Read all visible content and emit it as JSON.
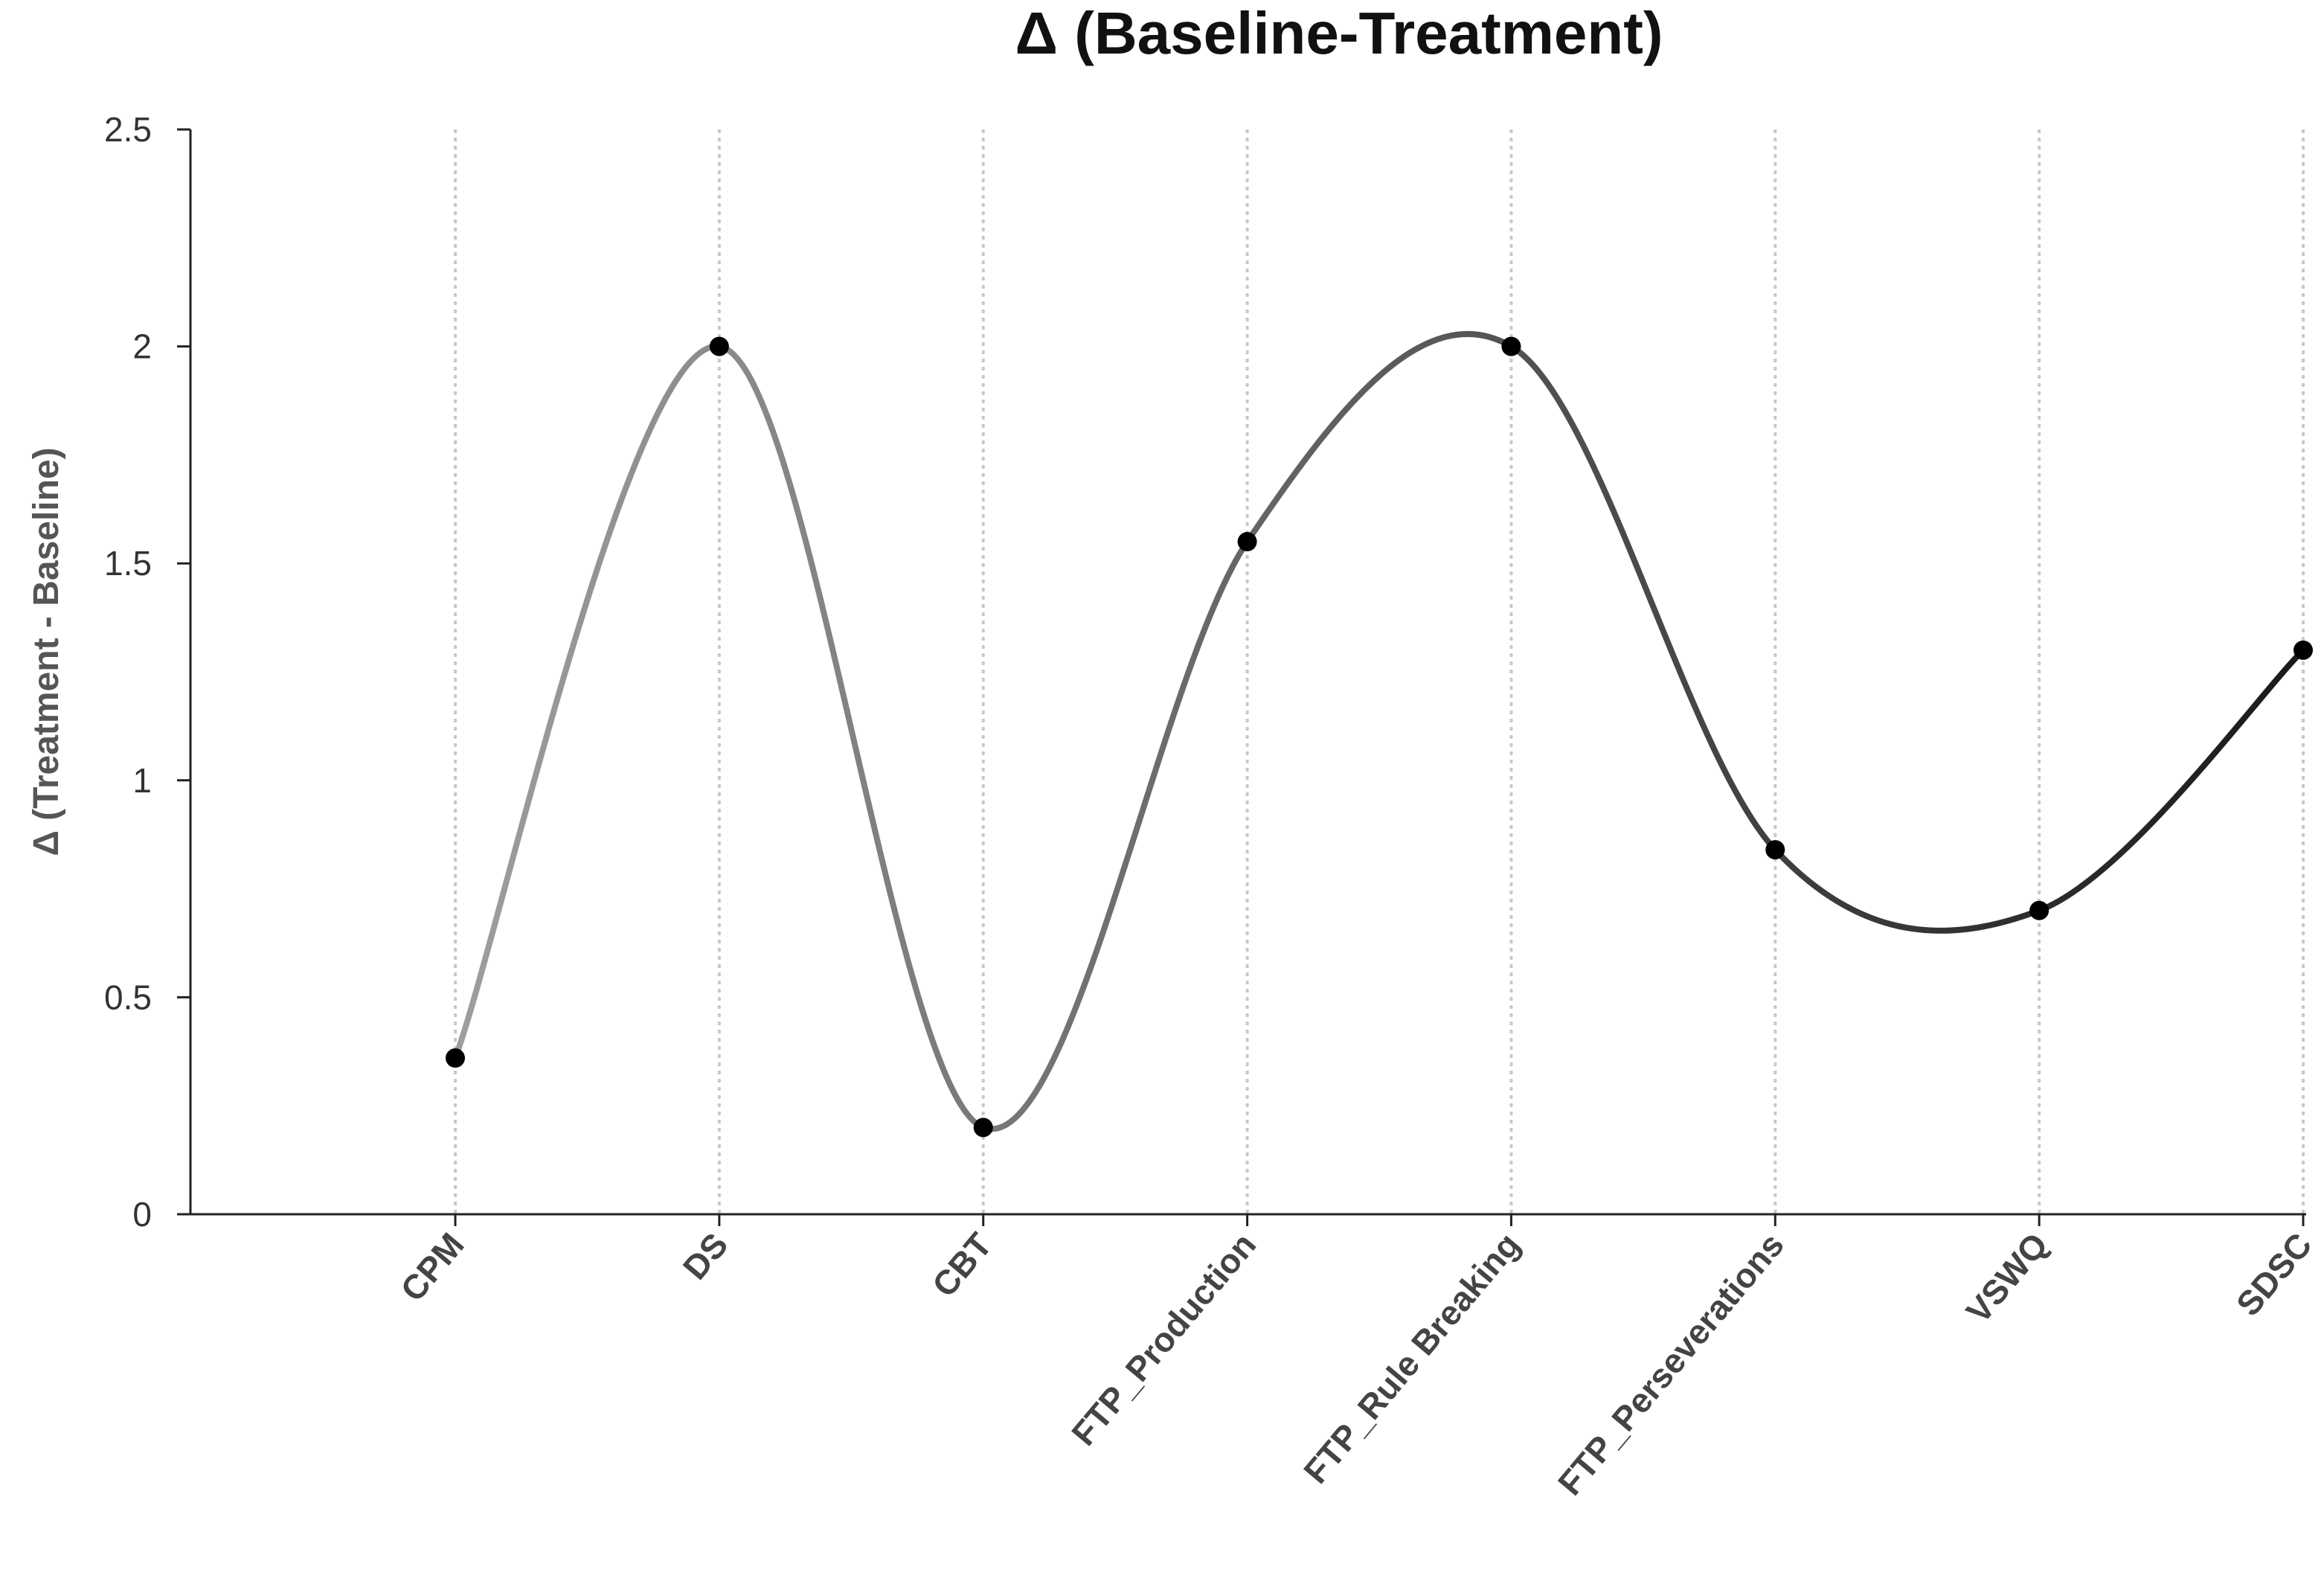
{
  "chart_data": {
    "type": "line",
    "title": "Δ (Baseline-Treatment)",
    "xlabel": "",
    "ylabel": "Δ (Treatment - Baseline)",
    "categories": [
      "CPM",
      "DS",
      "CBT",
      "FTP_Production",
      "FTP_Rule Breaking",
      "FTP_Perseverations",
      "VSWQ",
      "SDSC"
    ],
    "values": [
      0.36,
      2.0,
      0.2,
      1.55,
      2.0,
      0.84,
      0.7,
      1.3
    ],
    "ylim": [
      0,
      2.5
    ],
    "yticks": [
      0,
      0.5,
      1,
      1.5,
      2,
      2.5
    ],
    "ytick_labels": [
      "0",
      "0.5",
      "1",
      "1.5",
      "2",
      "2.5"
    ],
    "grid": "vertical dotted",
    "smooth": true,
    "line_gradient": [
      "#9e9e9e",
      "#1a1a1a"
    ],
    "marker_color": "#000000"
  }
}
